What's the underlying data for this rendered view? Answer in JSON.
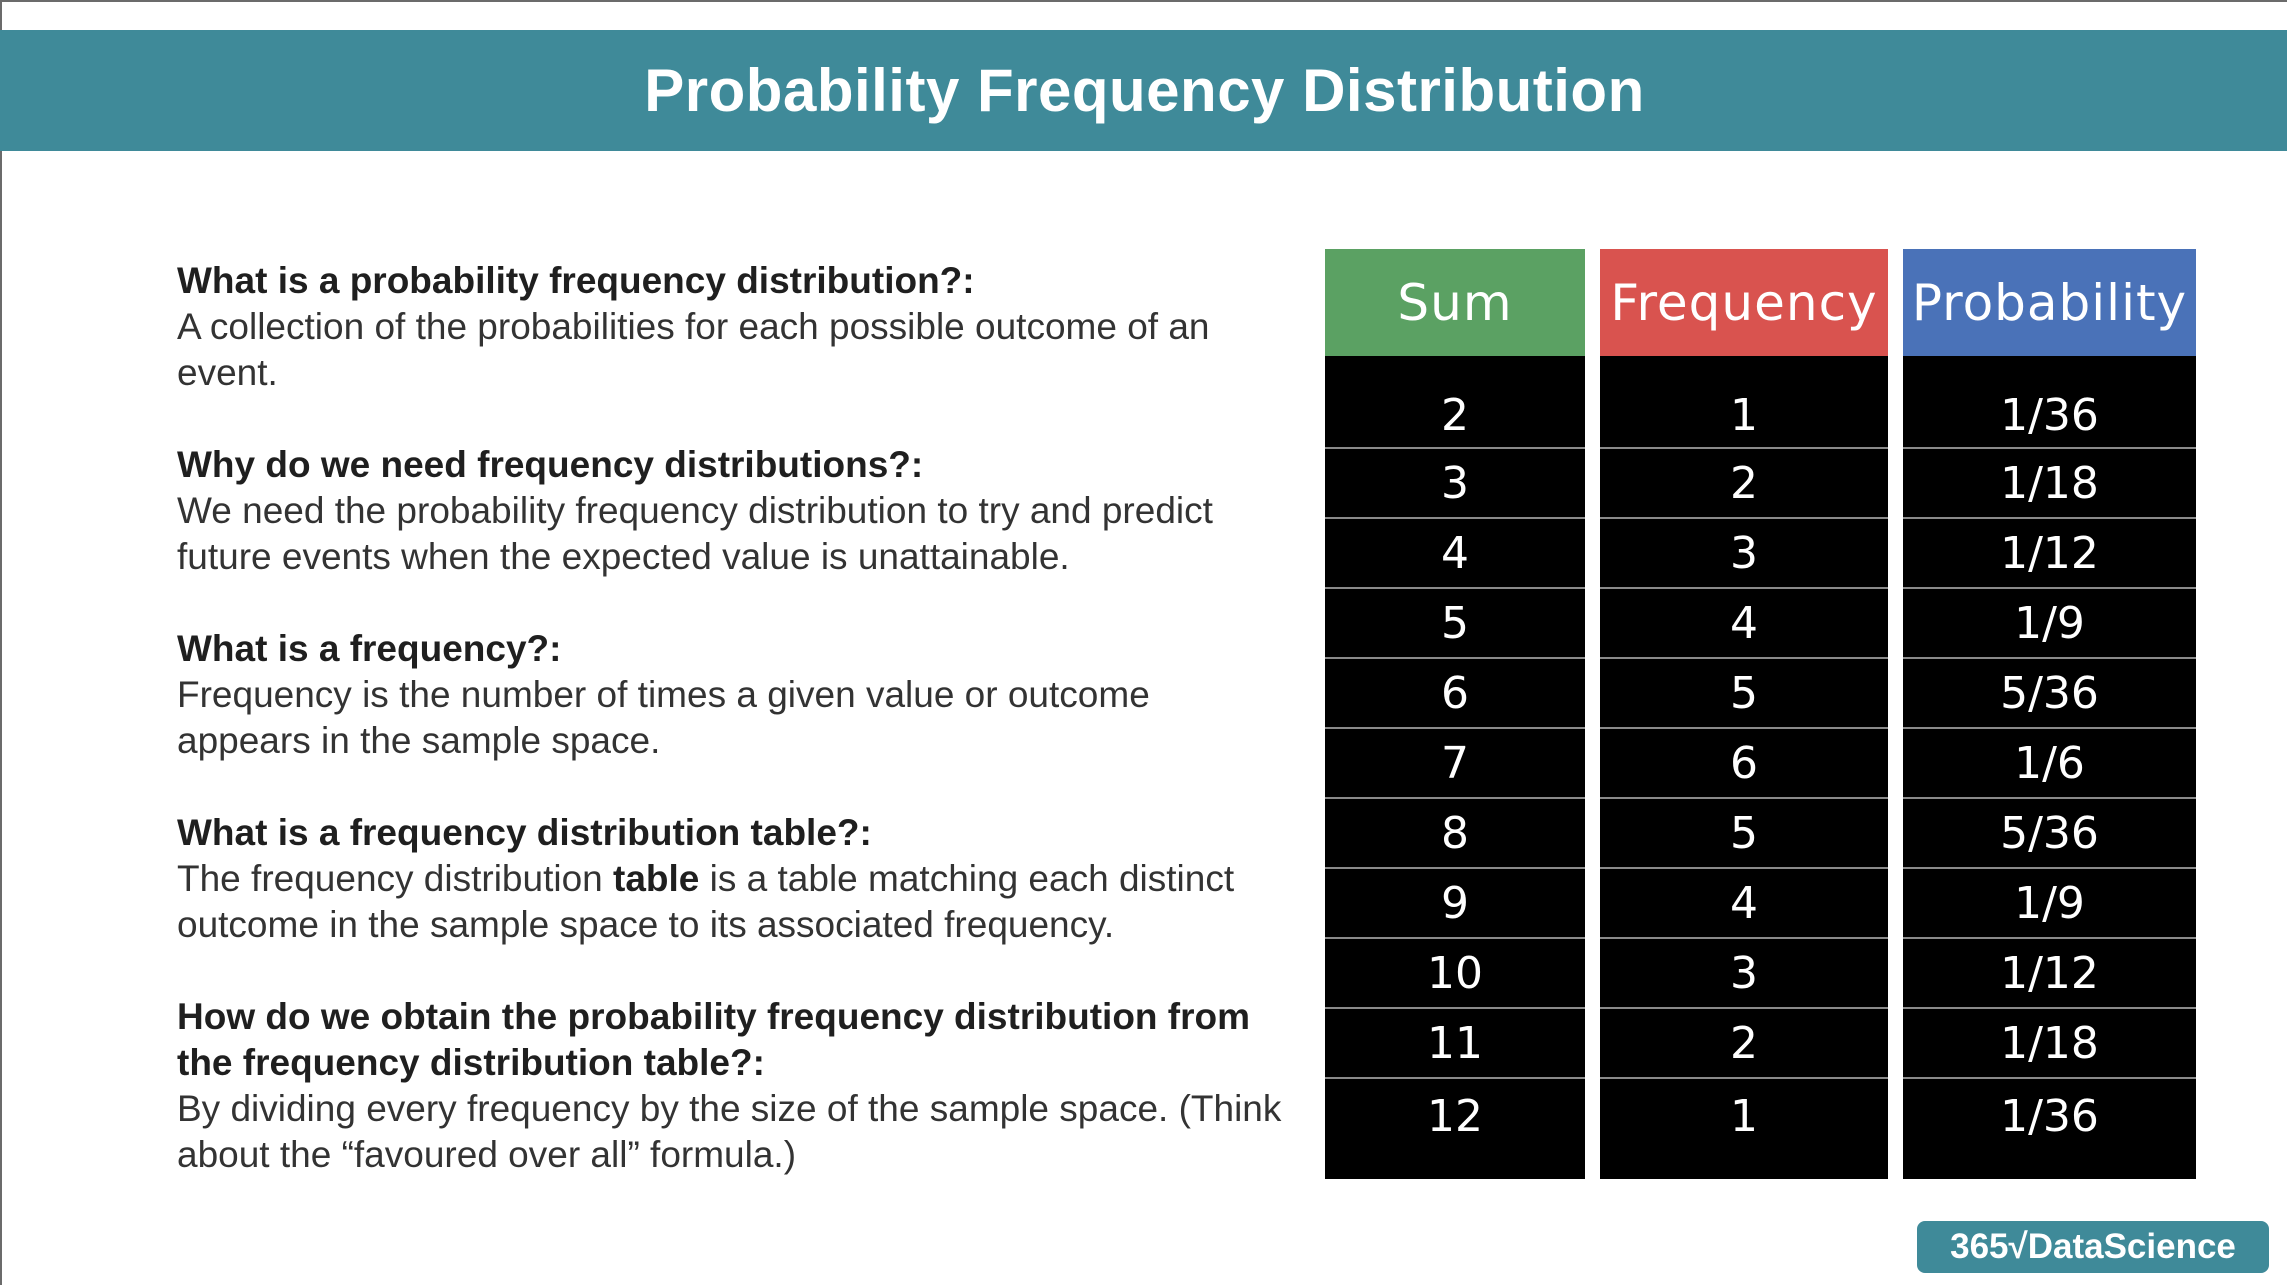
{
  "title": "Probability Frequency Distribution",
  "qa": [
    {
      "question": "What is a probability frequency distribution?:",
      "answer": "A collection of the probabilities for each possible outcome of an event."
    },
    {
      "question": "Why do we need frequency distributions?:",
      "answer": "We need the probability frequency distribution to try and predict future events when the expected value is unattainable."
    },
    {
      "question": "What is a frequency?:",
      "answer": "Frequency is the number of times a given value or outcome appears in the sample space."
    },
    {
      "question": "What is a frequency distribution table?:",
      "answer_pre": "The frequency distribution ",
      "answer_bold": "table",
      "answer_post": " is a table matching each distinct outcome in the sample space to its associated frequency."
    },
    {
      "question": "How do we obtain the probability frequency distribution from the frequency distribution table?:",
      "answer": "By dividing every frequency by the size of the sample space. (Think about the “favoured over all” formula.)"
    }
  ],
  "table": {
    "headers": [
      "Sum",
      "Frequency",
      "Probability"
    ],
    "header_colors": [
      "#5ba163",
      "#d9534f",
      "#4a72b8"
    ],
    "sum": [
      "2",
      "3",
      "4",
      "5",
      "6",
      "7",
      "8",
      "9",
      "10",
      "11",
      "12"
    ],
    "frequency": [
      "1",
      "2",
      "3",
      "4",
      "5",
      "6",
      "5",
      "4",
      "3",
      "2",
      "1"
    ],
    "probability": [
      "1/36",
      "1/18",
      "1/12",
      "1/9",
      "5/36",
      "1/6",
      "5/36",
      "1/9",
      "1/12",
      "1/18",
      "1/36"
    ]
  },
  "logo": "365√DataScience",
  "accent_color": "#3f8a99"
}
